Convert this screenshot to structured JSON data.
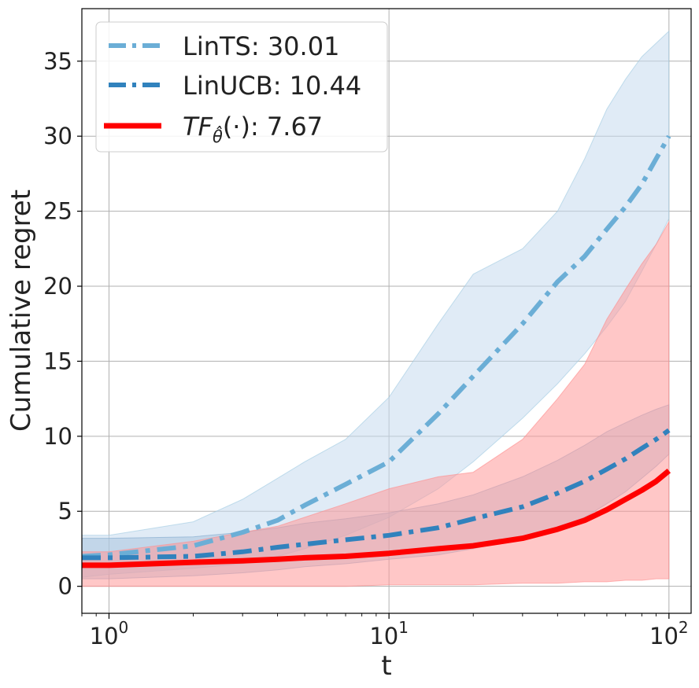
{
  "chart_data": {
    "type": "line",
    "title": "",
    "xlabel": "t",
    "ylabel": "Cumulative regret",
    "xscale": "log",
    "xlim": [
      0.8,
      120
    ],
    "ylim": [
      -1.8,
      38.5
    ],
    "yticks": [
      "0",
      "5",
      "10",
      "15",
      "20",
      "25",
      "30",
      "35"
    ],
    "xticks": [
      {
        "base": "10",
        "exp": "0"
      },
      {
        "base": "10",
        "exp": "1"
      },
      {
        "base": "10",
        "exp": "2"
      }
    ],
    "grid": true,
    "legend_position": "top-left",
    "series": [
      {
        "name": "LinTS",
        "legend_label": "LinTS: 30.01",
        "color": "#6baed6",
        "style": "dashdot",
        "x": [
          0.8,
          1,
          2,
          3,
          4,
          5,
          7,
          10,
          15,
          20,
          30,
          40,
          50,
          60,
          70,
          80,
          90,
          100
        ],
        "values": [
          2.0,
          2.1,
          2.7,
          3.6,
          4.4,
          5.4,
          6.8,
          8.3,
          11.5,
          14.0,
          17.5,
          20.3,
          22.0,
          23.8,
          25.3,
          26.8,
          28.5,
          30.0
        ],
        "lower": [
          0.6,
          0.8,
          1.2,
          1.5,
          2.0,
          2.5,
          3.4,
          4.6,
          6.5,
          8.3,
          11.2,
          13.5,
          15.5,
          17.3,
          19.0,
          21.0,
          22.8,
          24.5
        ],
        "upper": [
          3.4,
          3.4,
          4.3,
          5.8,
          7.2,
          8.3,
          9.8,
          12.6,
          17.5,
          20.8,
          22.5,
          25.0,
          28.5,
          31.8,
          33.8,
          35.3,
          36.2,
          37.0
        ]
      },
      {
        "name": "LinUCB",
        "legend_label": "LinUCB: 10.44",
        "color": "#3182bd",
        "style": "dashdot",
        "x": [
          0.8,
          1,
          2,
          3,
          4,
          5,
          7,
          10,
          15,
          20,
          30,
          40,
          50,
          60,
          70,
          80,
          90,
          100
        ],
        "values": [
          1.9,
          1.9,
          2.0,
          2.3,
          2.6,
          2.8,
          3.1,
          3.4,
          3.9,
          4.5,
          5.3,
          6.2,
          7.0,
          7.8,
          8.5,
          9.2,
          9.8,
          10.4
        ],
        "lower": [
          0.5,
          0.5,
          0.7,
          0.9,
          1.1,
          1.3,
          1.5,
          1.8,
          2.1,
          2.5,
          3.2,
          3.9,
          4.6,
          5.5,
          6.3,
          7.2,
          8.0,
          8.8
        ],
        "upper": [
          3.2,
          3.2,
          3.3,
          3.6,
          3.9,
          4.2,
          4.5,
          4.9,
          5.5,
          6.1,
          7.3,
          8.4,
          9.4,
          10.3,
          10.9,
          11.4,
          11.8,
          12.1
        ]
      },
      {
        "name": "TF",
        "legend_label_main": "TF",
        "legend_label_sub": "θ̂",
        "legend_label_rest": "(·): 7.67",
        "color": "#ff0000",
        "style": "solid",
        "x": [
          0.8,
          1,
          2,
          3,
          4,
          5,
          7,
          10,
          15,
          20,
          30,
          40,
          50,
          60,
          70,
          80,
          90,
          100
        ],
        "values": [
          1.4,
          1.4,
          1.6,
          1.7,
          1.8,
          1.9,
          2.0,
          2.2,
          2.5,
          2.7,
          3.2,
          3.8,
          4.4,
          5.1,
          5.8,
          6.4,
          7.0,
          7.7
        ],
        "lower": [
          0.0,
          0.0,
          0.0,
          0.0,
          0.0,
          0.0,
          0.0,
          0.1,
          0.1,
          0.1,
          0.2,
          0.2,
          0.3,
          0.3,
          0.4,
          0.4,
          0.5,
          0.5
        ],
        "upper": [
          2.3,
          2.3,
          3.0,
          3.6,
          4.0,
          4.6,
          5.5,
          6.5,
          7.3,
          7.6,
          9.8,
          12.5,
          14.8,
          17.8,
          19.8,
          21.5,
          22.8,
          24.3
        ]
      }
    ]
  },
  "colors": {
    "lints_band": "#c6dbef",
    "linucb_band": "#9ebcda",
    "tf_band": "#ff9999",
    "axis": "#000000",
    "grid": "#b0b0b0"
  }
}
